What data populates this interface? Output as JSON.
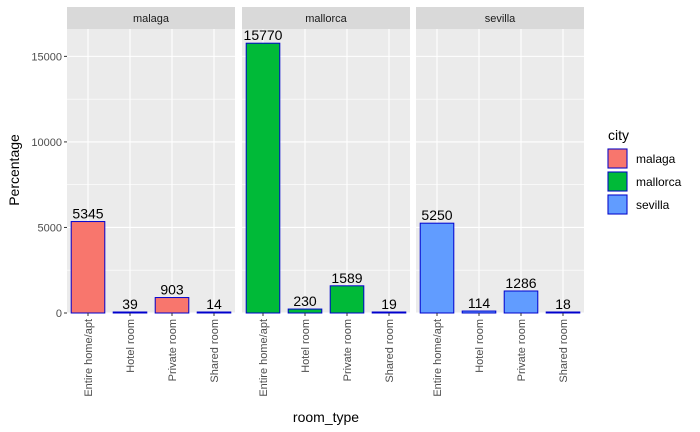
{
  "chart_data": {
    "type": "bar",
    "facet_by": "city",
    "categories": [
      "Entire home/apt",
      "Hotel room",
      "Private room",
      "Shared room"
    ],
    "series": [
      {
        "name": "malaga",
        "values": [
          5345,
          39,
          903,
          14
        ],
        "color": "#F8766D"
      },
      {
        "name": "mallorca",
        "values": [
          15770,
          230,
          1589,
          19
        ],
        "color": "#00BA38"
      },
      {
        "name": "sevilla",
        "values": [
          5250,
          114,
          1286,
          18
        ],
        "color": "#619CFF"
      }
    ],
    "bar_outline_color": "#0000CD",
    "xlabel": "room_type",
    "ylabel": "Percentage",
    "ylim": [
      0,
      16600
    ],
    "yticks": [
      0,
      5000,
      10000,
      15000
    ],
    "ytick_labels": [
      "0",
      "5000",
      "10000",
      "15000"
    ],
    "grid": true,
    "legend": {
      "title": "city",
      "position": "right"
    }
  }
}
